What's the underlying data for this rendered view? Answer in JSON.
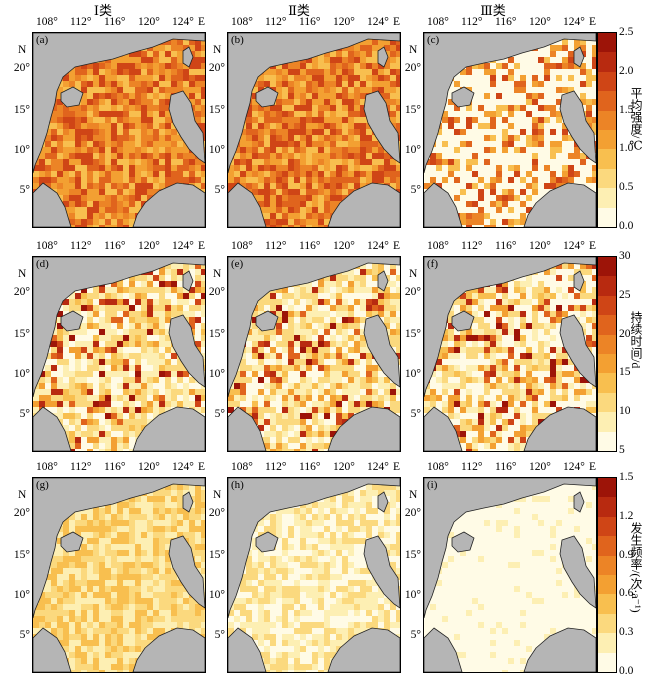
{
  "columns": [
    "Ⅰ类",
    "Ⅱ类",
    "Ⅲ类"
  ],
  "lon_ticks": [
    "108°",
    "112°",
    "116°",
    "120°",
    "124°"
  ],
  "lon_suffix": "E",
  "lat_ticks": [
    "20°",
    "15°",
    "10°",
    "5°"
  ],
  "lat_suffix": "N",
  "rows": [
    {
      "panels": [
        "(a)",
        "(b)",
        "(c)"
      ],
      "colorbar": {
        "title": "平均强度/℃",
        "ticks": [
          "2.5",
          "2.0",
          "1.5",
          "1.0",
          "0.5",
          "0.0"
        ],
        "range": [
          0,
          2.5
        ],
        "colors": [
          "#fffbe6",
          "#fdefb3",
          "#fbd97e",
          "#f8bf4f",
          "#f3a032",
          "#ec8426",
          "#e0641d",
          "#cf4516",
          "#b82a10",
          "#9d1408"
        ]
      }
    },
    {
      "panels": [
        "(d)",
        "(e)",
        "(f)"
      ],
      "colorbar": {
        "title": "持续时间/d",
        "ticks": [
          "30",
          "25",
          "20",
          "15",
          "10",
          "5"
        ],
        "range": [
          5,
          30
        ],
        "colors": [
          "#fffbe6",
          "#fdefb3",
          "#fbd97e",
          "#f8bf4f",
          "#f3a032",
          "#ec8426",
          "#e0641d",
          "#cf4516",
          "#b82a10",
          "#9d1408"
        ]
      }
    },
    {
      "panels": [
        "(g)",
        "(h)",
        "(i)"
      ],
      "colorbar": {
        "title": "发生频率/(次·a⁻¹)",
        "ticks": [
          "1.5",
          "1.2",
          "0.9",
          "0.6",
          "0.3",
          "0.0"
        ],
        "range": [
          0,
          1.5
        ],
        "colors": [
          "#fffbe6",
          "#fdefb3",
          "#fbd97e",
          "#f8bf4f",
          "#f3a032",
          "#ec8426",
          "#e0641d",
          "#cf4516",
          "#b82a10",
          "#9d1408"
        ]
      }
    }
  ],
  "map_data": {
    "description_levels": {
      "a": "orange-dominant (1.0-2.0)",
      "b": "orange-dominant (1.0-2.0)",
      "c": "orange patches over white",
      "d": "mostly pale with red patches",
      "e": "mostly pale with red patches",
      "f": "pale with red patches north-central",
      "g": "light orange (0.3-0.6)",
      "h": "pale yellow (0.1-0.4)",
      "i": "near white (0-0.1)"
    }
  }
}
